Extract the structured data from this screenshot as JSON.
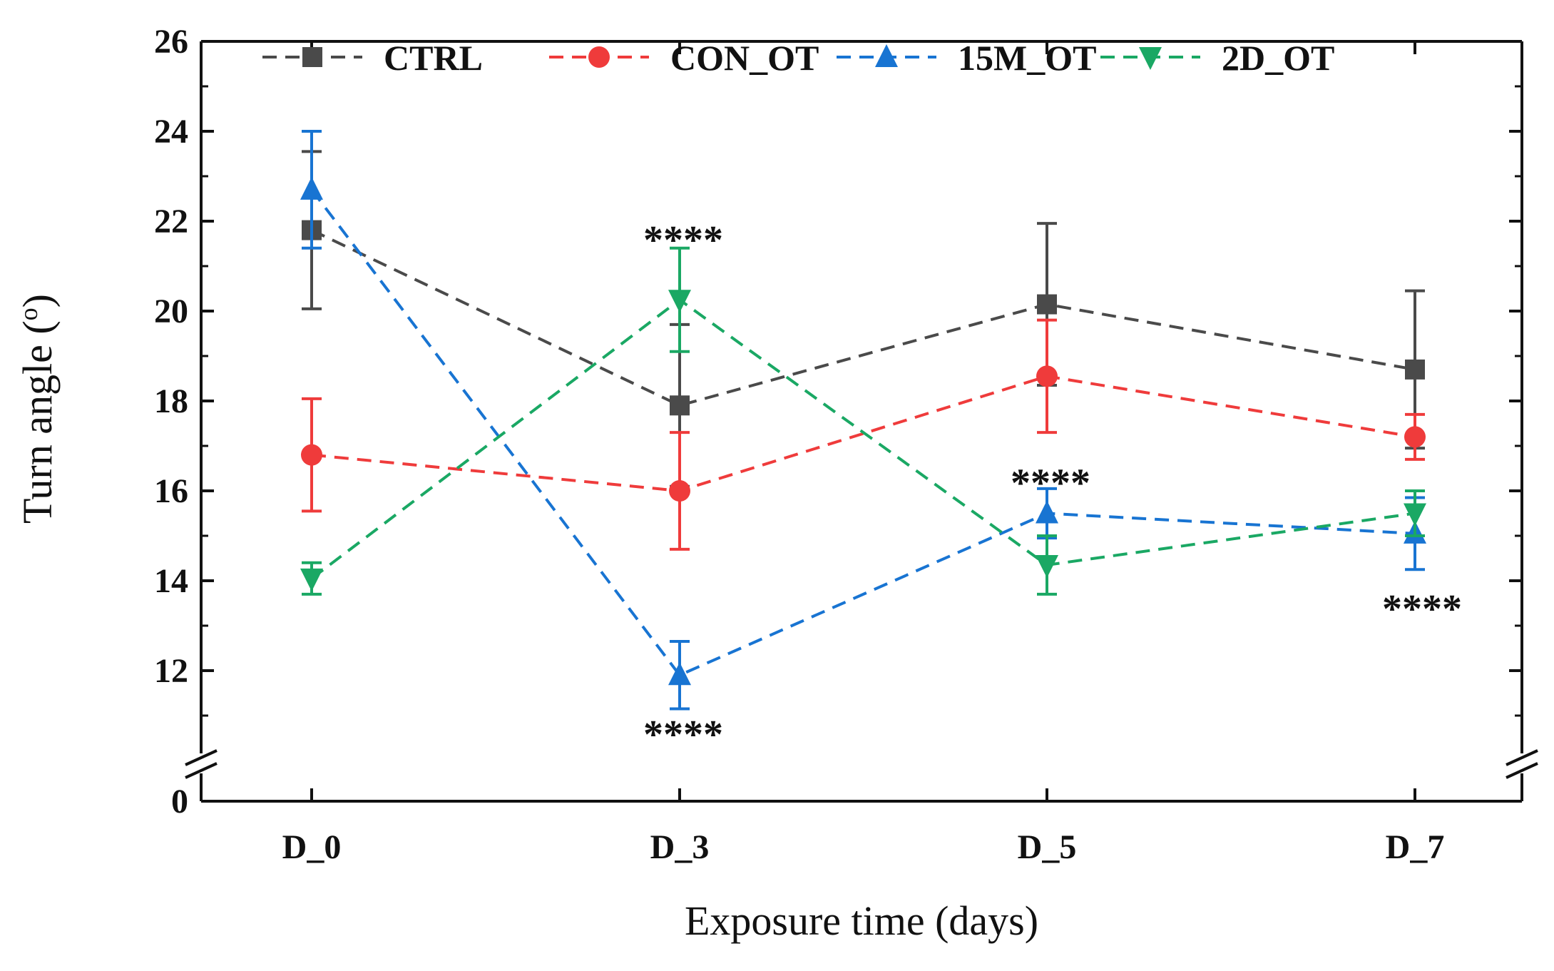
{
  "chart_data": {
    "type": "line",
    "title": "",
    "xlabel": "Exposure time (days)",
    "ylabel": "Turn angle (",
    "ylabel_superscript": "o",
    "ylabel_suffix": ")",
    "categories": [
      "D_0",
      "D_3",
      "D_5",
      "D_7"
    ],
    "y_axis_break": true,
    "y_break_zero_label": "0",
    "ylim": [
      10.5,
      26
    ],
    "yticks": [
      12,
      14,
      16,
      18,
      20,
      22,
      24,
      26
    ],
    "series": [
      {
        "name": "CTRL",
        "color": "#4a4a4a",
        "marker": "square",
        "values": [
          21.8,
          17.9,
          20.15,
          18.7
        ],
        "errors": [
          1.75,
          1.8,
          1.8,
          1.75
        ]
      },
      {
        "name": "CON_OT",
        "color": "#ef3b3b",
        "marker": "circle",
        "values": [
          16.8,
          16.0,
          18.55,
          17.2
        ],
        "errors": [
          1.25,
          1.3,
          1.25,
          0.5
        ]
      },
      {
        "name": "15M_OT",
        "color": "#1874d2",
        "marker": "triangle-up",
        "values": [
          22.7,
          11.9,
          15.5,
          15.05
        ],
        "errors": [
          1.3,
          0.75,
          0.55,
          0.8
        ]
      },
      {
        "name": "2D_OT",
        "color": "#1aa864",
        "marker": "triangle-down",
        "values": [
          14.05,
          20.25,
          14.35,
          15.5
        ],
        "errors": [
          0.35,
          1.15,
          0.65,
          0.5
        ]
      }
    ],
    "annotations": [
      {
        "text": "****",
        "category": "D_3",
        "y": 21.6,
        "note": "2D_OT"
      },
      {
        "text": "****",
        "category": "D_3",
        "y": 10.6,
        "note": "15M_OT"
      },
      {
        "text": "****",
        "category": "D_5",
        "y": 16.2,
        "note": "15M_OT"
      },
      {
        "text": "****",
        "category": "D_7",
        "y": 13.4,
        "note": "15M_OT"
      }
    ],
    "legend": {
      "position": "top",
      "entries": [
        "CTRL",
        "CON_OT",
        "15M_OT",
        "2D_OT"
      ]
    }
  }
}
